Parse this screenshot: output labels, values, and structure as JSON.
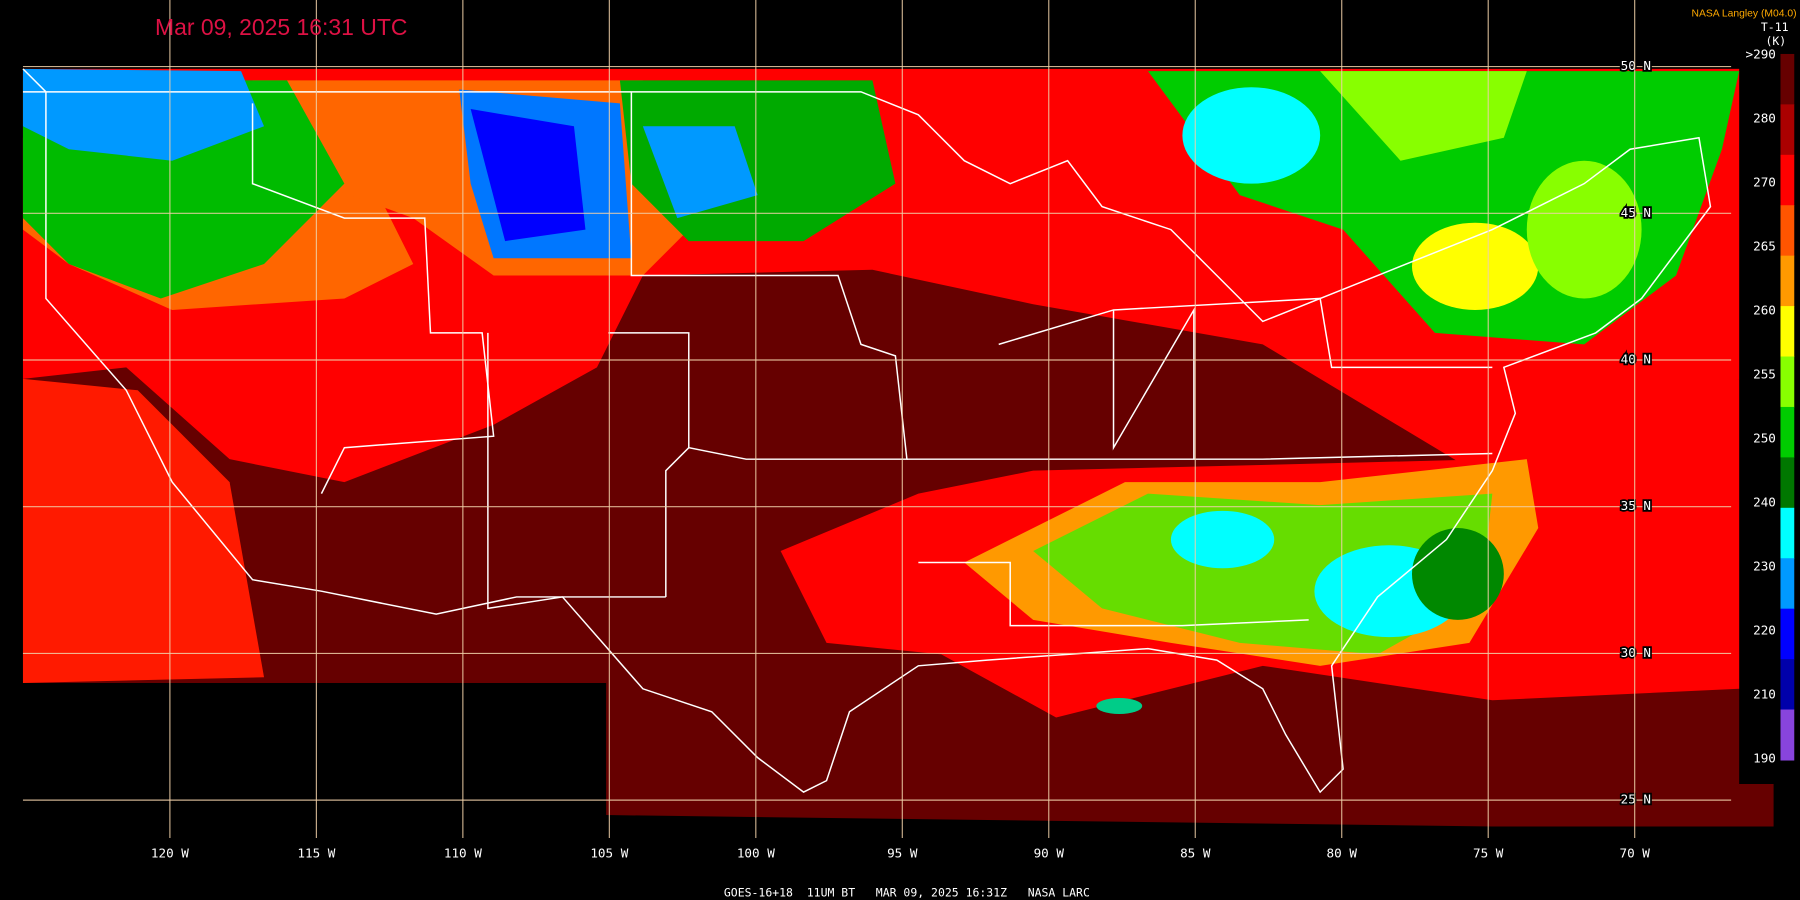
{
  "header": {
    "title": "Mar 09, 2025 16:31 UTC",
    "source": "NASA Langley (M04.0)",
    "product": "T-11",
    "unit": "(K)"
  },
  "colorbar": {
    "labels": [
      ">290",
      "280",
      "270",
      "265",
      "260",
      "255",
      "250",
      "240",
      "230",
      "220",
      "210",
      "190"
    ]
  },
  "latitude_labels": [
    "50 N",
    "45 N",
    "40 N",
    "35 N",
    "30 N",
    "25 N"
  ],
  "longitude_labels": [
    "120 W",
    "115 W",
    "110 W",
    "105 W",
    "100 W",
    "95 W",
    "90 W",
    "85 W",
    "80 W",
    "75 W",
    "70 W"
  ],
  "footer": "GOES-16+18  11UM BT   MAR 09, 2025 16:31Z   NASA LARC"
}
